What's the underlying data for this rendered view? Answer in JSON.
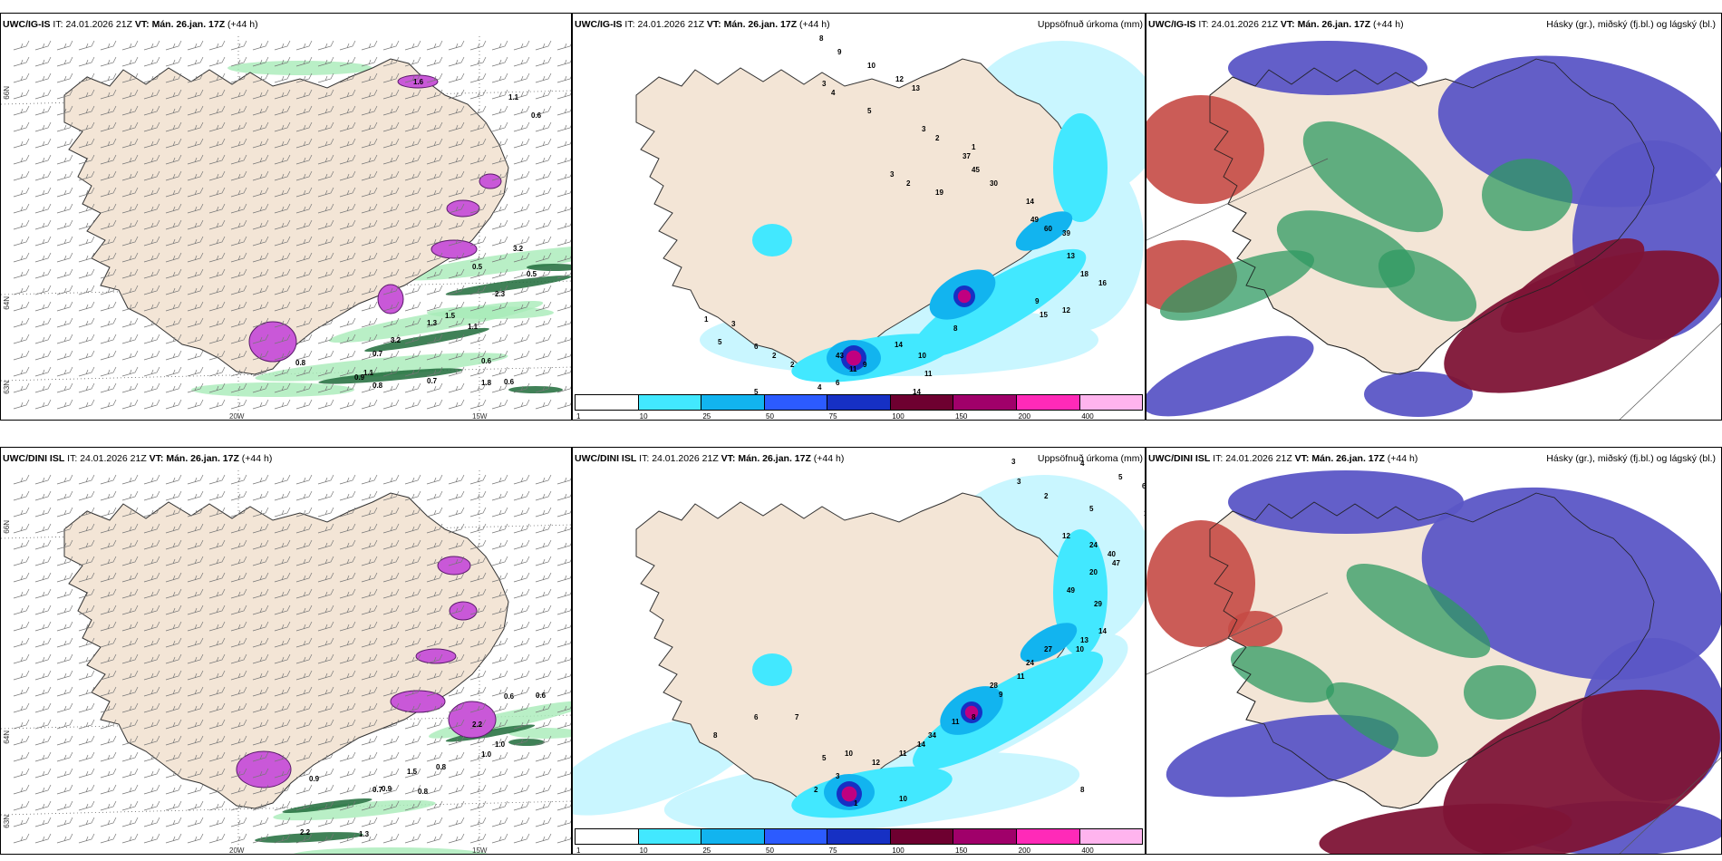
{
  "colors": {
    "land": "#f3e5d6",
    "cyan_light": "#c9f6ff",
    "cyan": "#42e8ff",
    "blue_med": "#12b4ef",
    "blue": "#2c5bff",
    "navy": "#1630c4",
    "maroon": "#6e0030",
    "magenta": "#c00080",
    "pink": "#ff50c8",
    "pink_light": "#ffb4ee",
    "green": "#2f9a62",
    "green_light": "#a8ebb8",
    "purple_cloud": "#5b56c6",
    "red_cloud": "#c54a45",
    "darkred_cloud": "#7e1436"
  },
  "rows": [
    {
      "model_label": "UWC/IG-IS",
      "it_label": "IT:",
      "it_value": "24.01.2026 21Z",
      "vt_label": "VT:",
      "vt_value": "Mán. 26.jan. 17Z",
      "lead": "(+44 h)",
      "lat_labels": [
        "66N",
        "64N",
        "63N"
      ],
      "lon_labels": [
        "20W",
        "15W"
      ],
      "left_numbers": [
        "1.6",
        "1.1",
        "0.6",
        "0.5",
        "2.3",
        "1.3",
        "1.5",
        "1.1",
        "3.2",
        "0.7",
        "0.6",
        "1.1",
        "0.9",
        "0.8",
        "0.7",
        "1.8",
        "0.6",
        "3.2",
        "0.8",
        "0.5"
      ],
      "precip_title": "Uppsöfnuð úrkoma (mm)",
      "precip_numbers": [
        "8",
        "9",
        "10",
        "12",
        "13",
        "3",
        "4",
        "5",
        "3",
        "2",
        "1",
        "3",
        "2",
        "19",
        "37",
        "45",
        "30",
        "14",
        "49",
        "60",
        "39",
        "13",
        "18",
        "16",
        "12",
        "15",
        "9",
        "8",
        "11",
        "10",
        "14",
        "43",
        "14",
        "9",
        "11",
        "6",
        "4",
        "2",
        "2",
        "6",
        "3",
        "1",
        "5",
        "5",
        "5",
        "5"
      ],
      "cloud_title": "Hásky (gr.), miðský (fj.bl.) og lágský (bl.)"
    },
    {
      "model_label": "UWC/DINI ISL",
      "it_label": "IT:",
      "it_value": "24.01.2026 21Z",
      "vt_label": "VT:",
      "vt_value": "Mán. 26.jan. 17Z",
      "lead": "(+44 h)",
      "lat_labels": [
        "66N",
        "64N",
        "63N"
      ],
      "lon_labels": [
        "20W",
        "15W"
      ],
      "left_numbers": [
        "0.6",
        "0.6",
        "2.2",
        "1.0",
        "1.0",
        "0.9",
        "0.7",
        "0.8",
        "2.2",
        "1.3",
        "0.9",
        "1.5",
        "0.8"
      ],
      "precip_title": "Uppsöfnuð úrkoma (mm)",
      "precip_numbers": [
        "3",
        "4",
        "5",
        "6",
        "3",
        "2",
        "5",
        "17",
        "12",
        "24",
        "40",
        "47",
        "20",
        "49",
        "29",
        "14",
        "13",
        "10",
        "27",
        "24",
        "11",
        "28",
        "9",
        "8",
        "11",
        "34",
        "14",
        "11",
        "12",
        "10",
        "7",
        "6",
        "8",
        "5",
        "3",
        "2",
        "1",
        "10",
        "8"
      ],
      "cloud_title": "Hásky (gr.), miðský (fj.bl.) og lágský (bl.)"
    }
  ],
  "colorbar": {
    "ticks": [
      "1",
      "10",
      "25",
      "50",
      "75",
      "100",
      "150",
      "200",
      "400"
    ],
    "colors": [
      "#ffffff",
      "#42e8ff",
      "#12b4ef",
      "#2c5bff",
      "#1630c4",
      "#6e0030",
      "#a0006a",
      "#ff2ab8",
      "#ffb4ee"
    ]
  }
}
